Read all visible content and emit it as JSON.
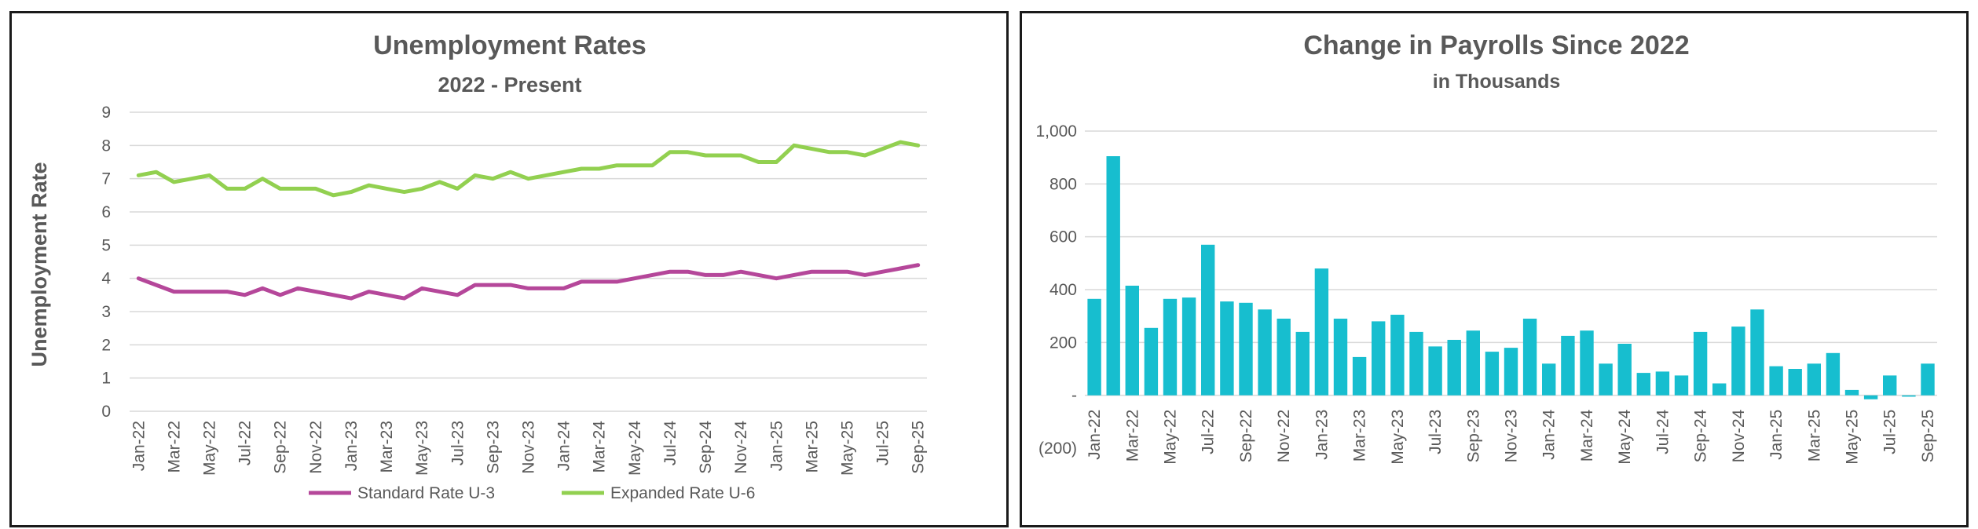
{
  "chart_data": [
    {
      "type": "line",
      "title": "Unemployment Rates",
      "subtitle": "2022 - Present",
      "xlabel": "",
      "ylabel": "Unemployment Rate",
      "ylim": [
        0,
        9
      ],
      "y_ticks": [
        "0",
        "1",
        "2",
        "3",
        "4",
        "5",
        "6",
        "7",
        "8",
        "9"
      ],
      "grid": true,
      "legend_position": "bottom",
      "x": [
        "Jan-22",
        "Feb-22",
        "Mar-22",
        "Apr-22",
        "May-22",
        "Jun-22",
        "Jul-22",
        "Aug-22",
        "Sep-22",
        "Oct-22",
        "Nov-22",
        "Dec-22",
        "Jan-23",
        "Feb-23",
        "Mar-23",
        "Apr-23",
        "May-23",
        "Jun-23",
        "Jul-23",
        "Aug-23",
        "Sep-23",
        "Oct-23",
        "Nov-23",
        "Dec-23",
        "Jan-24",
        "Feb-24",
        "Mar-24",
        "Apr-24",
        "May-24",
        "Jun-24",
        "Jul-24",
        "Aug-24",
        "Sep-24",
        "Oct-24",
        "Nov-24",
        "Dec-24",
        "Jan-25",
        "Feb-25",
        "Mar-25",
        "Apr-25",
        "May-25",
        "Jun-25",
        "Jul-25",
        "Aug-25",
        "Sep-25"
      ],
      "x_tick_labels": [
        "Jan-22",
        "Mar-22",
        "May-22",
        "Jul-22",
        "Sep-22",
        "Nov-22",
        "Jan-23",
        "Mar-23",
        "May-23",
        "Jul-23",
        "Sep-23",
        "Nov-23",
        "Jan-24",
        "Mar-24",
        "May-24",
        "Jul-24",
        "Sep-24",
        "Nov-24",
        "Jan-25",
        "Mar-25",
        "May-25",
        "Jul-25",
        "Sep-25"
      ],
      "series": [
        {
          "name": "Standard Rate U-3",
          "color": "#b5479a",
          "values": [
            4.0,
            3.8,
            3.6,
            3.6,
            3.6,
            3.6,
            3.5,
            3.7,
            3.5,
            3.7,
            3.6,
            3.5,
            3.4,
            3.6,
            3.5,
            3.4,
            3.7,
            3.6,
            3.5,
            3.8,
            3.8,
            3.8,
            3.7,
            3.7,
            3.7,
            3.9,
            3.9,
            3.9,
            4.0,
            4.1,
            4.2,
            4.2,
            4.1,
            4.1,
            4.2,
            4.1,
            4.0,
            4.1,
            4.2,
            4.2,
            4.2,
            4.1,
            4.2,
            4.3,
            4.4
          ]
        },
        {
          "name": "Expanded Rate U-6",
          "color": "#92d050",
          "values": [
            7.1,
            7.2,
            6.9,
            7.0,
            7.1,
            6.7,
            6.7,
            7.0,
            6.7,
            6.7,
            6.7,
            6.5,
            6.6,
            6.8,
            6.7,
            6.6,
            6.7,
            6.9,
            6.7,
            7.1,
            7.0,
            7.2,
            7.0,
            7.1,
            7.2,
            7.3,
            7.3,
            7.4,
            7.4,
            7.4,
            7.8,
            7.8,
            7.7,
            7.7,
            7.7,
            7.5,
            7.5,
            8.0,
            7.9,
            7.8,
            7.8,
            7.7,
            7.9,
            8.1,
            8.0
          ]
        }
      ]
    },
    {
      "type": "bar",
      "title": "Change in Payrolls Since 2022",
      "subtitle": "in Thousands",
      "xlabel": "",
      "ylabel": "",
      "ylim": [
        -200,
        1000
      ],
      "y_ticks": [
        "(200)",
        "-",
        "200",
        "400",
        "600",
        "800",
        "1,000"
      ],
      "grid": true,
      "color": "#17becf",
      "categories": [
        "Jan-22",
        "Feb-22",
        "Mar-22",
        "Apr-22",
        "May-22",
        "Jun-22",
        "Jul-22",
        "Aug-22",
        "Sep-22",
        "Oct-22",
        "Nov-22",
        "Dec-22",
        "Jan-23",
        "Feb-23",
        "Mar-23",
        "Apr-23",
        "May-23",
        "Jun-23",
        "Jul-23",
        "Aug-23",
        "Sep-23",
        "Oct-23",
        "Nov-23",
        "Dec-23",
        "Jan-24",
        "Feb-24",
        "Mar-24",
        "Apr-24",
        "May-24",
        "Jun-24",
        "Jul-24",
        "Aug-24",
        "Sep-24",
        "Oct-24",
        "Nov-24",
        "Dec-24",
        "Jan-25",
        "Feb-25",
        "Mar-25",
        "Apr-25",
        "May-25",
        "Jun-25",
        "Jul-25",
        "Aug-25",
        "Sep-25"
      ],
      "x_tick_labels": [
        "Jan-22",
        "Mar-22",
        "May-22",
        "Jul-22",
        "Sep-22",
        "Nov-22",
        "Jan-23",
        "Mar-23",
        "May-23",
        "Jul-23",
        "Sep-23",
        "Nov-23",
        "Jan-24",
        "Mar-24",
        "May-24",
        "Jul-24",
        "Sep-24",
        "Nov-24",
        "Jan-25",
        "Mar-25",
        "May-25",
        "Jul-25",
        "Sep-25"
      ],
      "values": [
        365,
        905,
        415,
        255,
        365,
        370,
        570,
        355,
        350,
        325,
        290,
        240,
        480,
        290,
        145,
        280,
        305,
        240,
        185,
        210,
        245,
        165,
        180,
        290,
        120,
        225,
        245,
        120,
        195,
        85,
        90,
        75,
        240,
        45,
        260,
        325,
        110,
        100,
        120,
        160,
        20,
        -15,
        75,
        -5,
        120
      ]
    }
  ]
}
